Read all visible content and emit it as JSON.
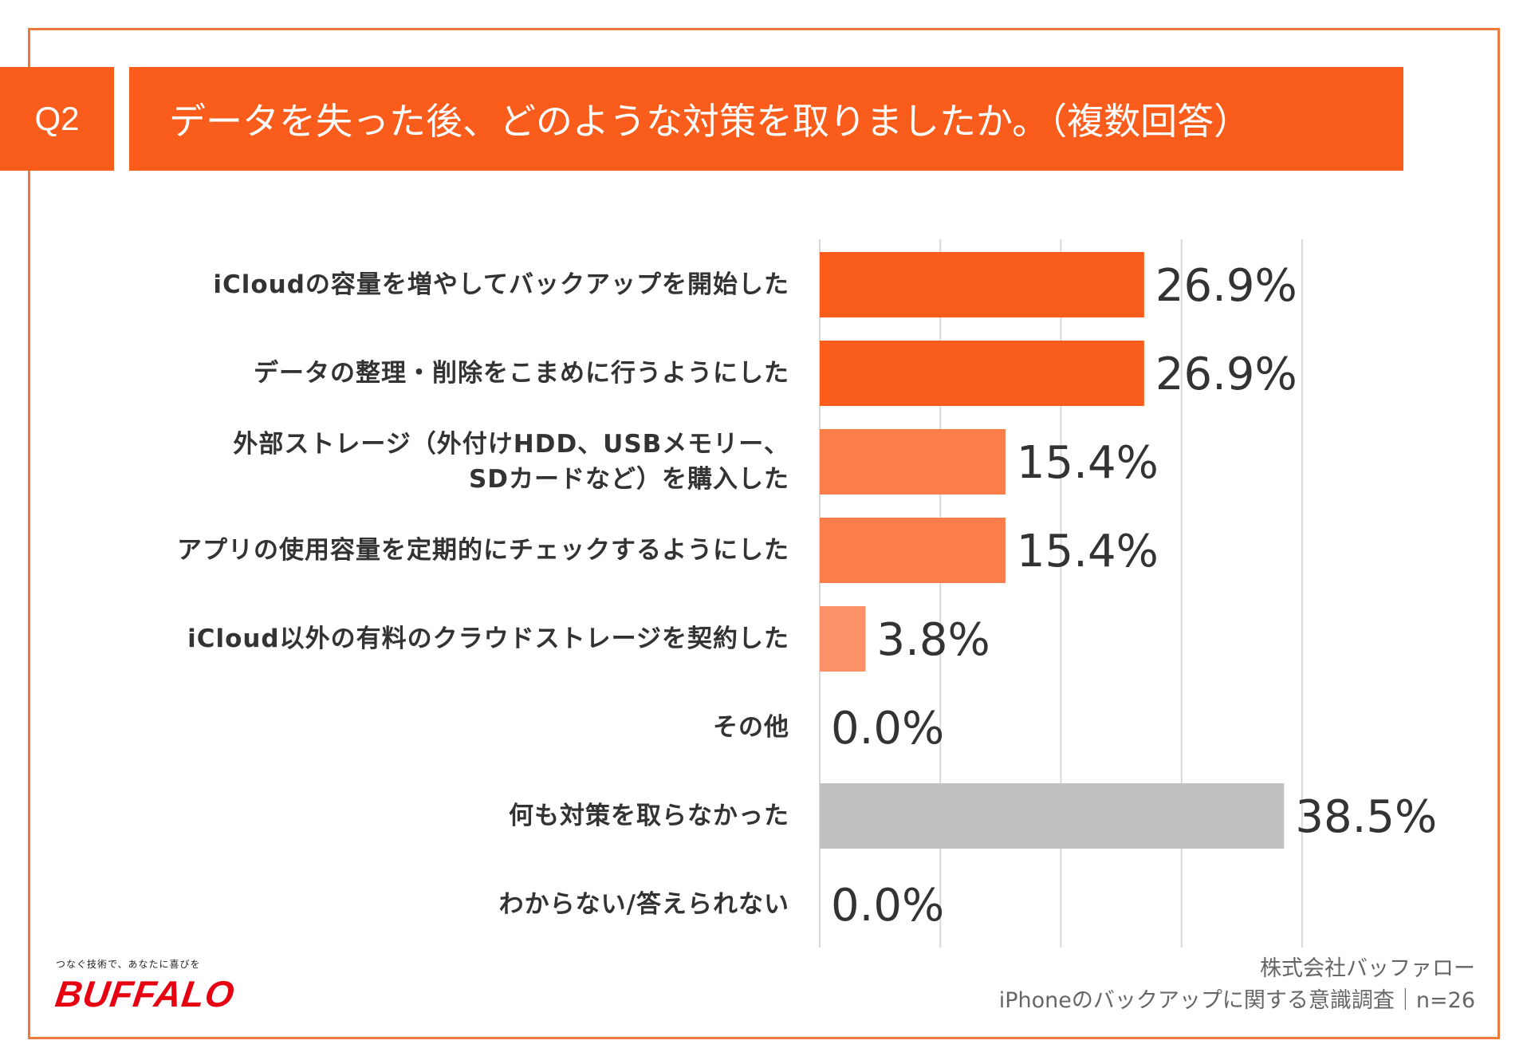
{
  "header": {
    "question_label": "Q2",
    "title": "データを失った後、どのような対策を取りましたか。（複数回答）"
  },
  "chart_data": {
    "type": "bar",
    "orientation": "horizontal",
    "title": "データを失った後、どのような対策を取りましたか。（複数回答）",
    "categories": [
      "iCloudの容量を増やしてバックアップを開始した",
      "データの整理・削除をこまめに行うようにした",
      "外部ストレージ（外付けHDD、USBメモリー、\nSDカードなど）を購入した",
      "アプリの使用容量を定期的にチェックするようにした",
      "iCloud以外の有料のクラウドストレージを契約した",
      "その他",
      "何も対策を取らなかった",
      "わからない/答えられない"
    ],
    "values": [
      26.9,
      26.9,
      15.4,
      15.4,
      3.8,
      0.0,
      38.5,
      0.0
    ],
    "value_labels": [
      "26.9%",
      "26.9%",
      "15.4%",
      "15.4%",
      "3.8%",
      "0.0%",
      "38.5%",
      "0.0%"
    ],
    "bar_colors": [
      "#fa5c1b",
      "#fa5c1b",
      "#fb7d4a",
      "#fb7d4a",
      "#fc9067",
      "#fc9067",
      "#c0c0c0",
      "#c0c0c0"
    ],
    "xlim": [
      0,
      40
    ],
    "grid": true,
    "gridline_color": "#d9d9d9",
    "label_color": "#333333"
  },
  "footer": {
    "brand_tagline": "つなぐ技術で、あなたに喜びを",
    "brand_name": "BUFFALO",
    "credit_line1": "株式会社バッファロー",
    "credit_line2": "iPhoneのバックアップに関する意識調査｜n=26"
  },
  "colors": {
    "accent": "#fa5c1b",
    "frame": "#ec7a3d",
    "brand_red": "#e60012"
  }
}
